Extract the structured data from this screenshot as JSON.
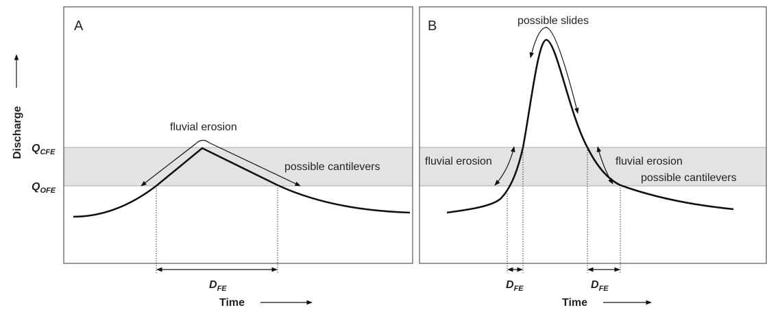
{
  "y_axis": {
    "label": "Discharge",
    "levels": [
      {
        "main": "Q",
        "sub": "CFE"
      },
      {
        "main": "Q",
        "sub": "OFE"
      }
    ]
  },
  "panels": [
    {
      "label": "A",
      "annotations": [
        "fluvial erosion",
        "possible cantilevers"
      ],
      "durations": [
        {
          "main": "D",
          "sub": "FE"
        }
      ],
      "x_axis": "Time"
    },
    {
      "label": "B",
      "annotations": [
        "possible slides",
        "fluvial erosion",
        "fluvial erosion",
        "possible cantilevers"
      ],
      "durations": [
        {
          "main": "D",
          "sub": "FE"
        },
        {
          "main": "D",
          "sub": "FE"
        }
      ],
      "x_axis": "Time"
    }
  ]
}
